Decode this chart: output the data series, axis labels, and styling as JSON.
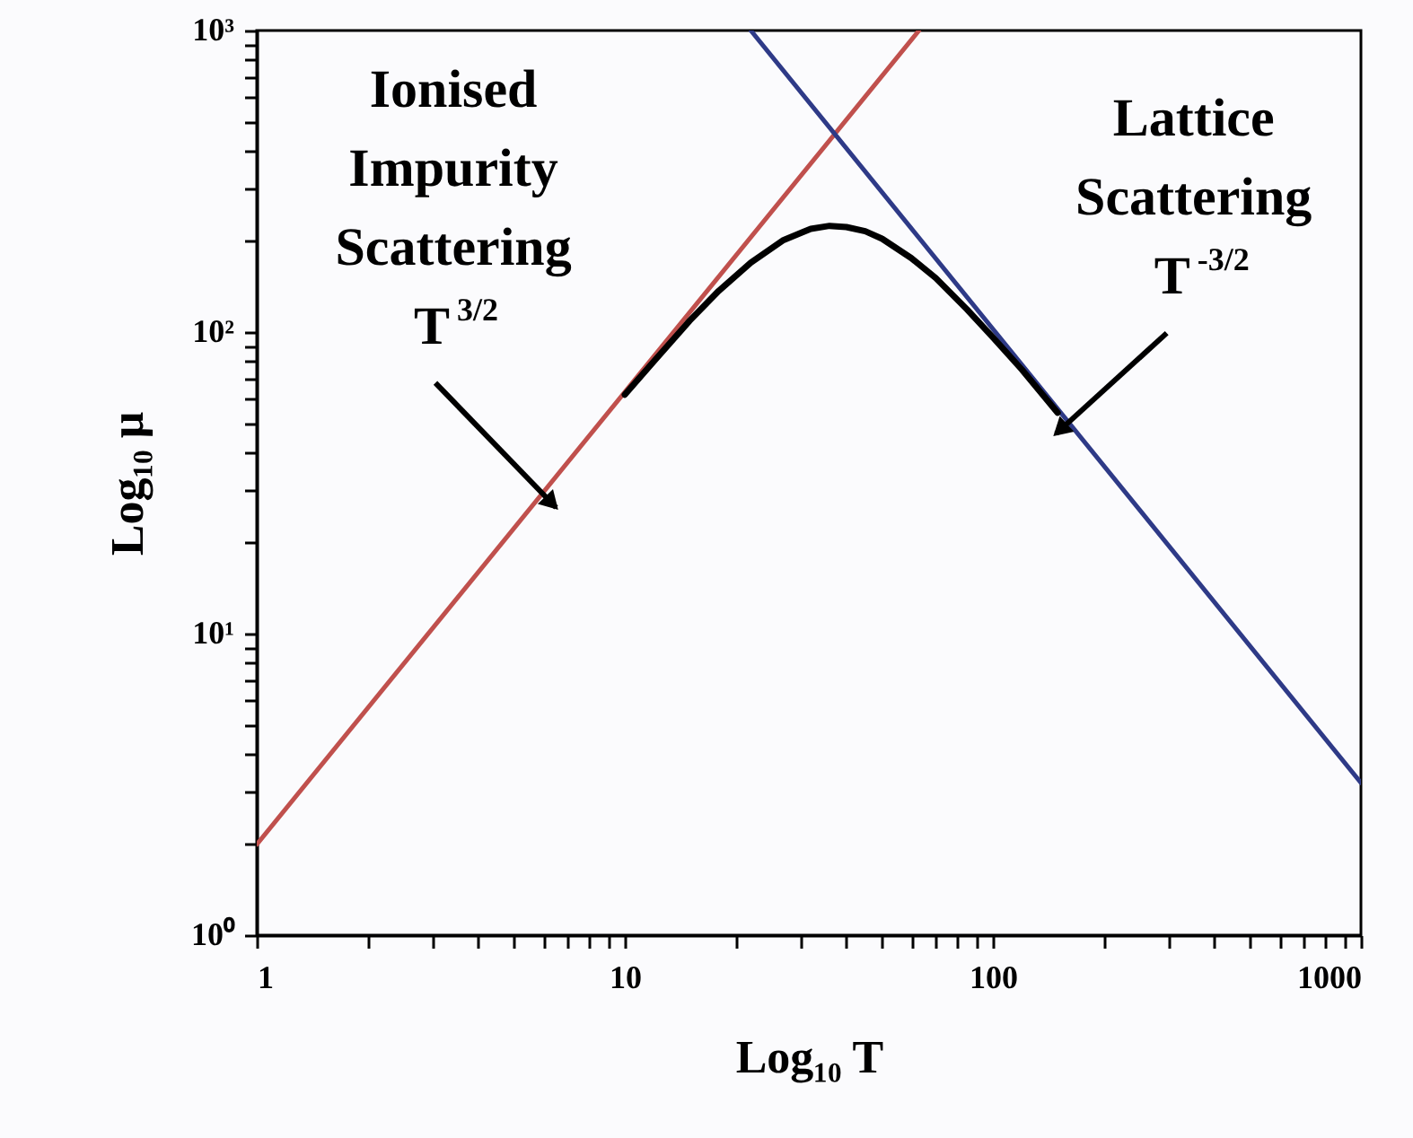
{
  "chart_data": {
    "type": "line",
    "xlabel": "Log₁₀ T",
    "ylabel": "Log₁₀ μ",
    "log": "xy",
    "grid": false,
    "line_style": "solid",
    "marker": "none",
    "xlim": [
      1,
      1000
    ],
    "ylim": [
      1,
      1000
    ],
    "xticks": [
      1,
      {
        "value": 2,
        "label": null
      },
      {
        "value": 3,
        "label": null
      },
      {
        "value": 4,
        "label": null
      },
      {
        "value": 5,
        "label": null
      },
      {
        "value": 6,
        "label": null
      },
      {
        "value": 7,
        "label": null
      },
      {
        "value": 8,
        "label": null
      },
      {
        "value": 9,
        "label": null
      },
      10,
      {
        "value": 20,
        "label": null
      },
      {
        "value": 30,
        "label": null
      },
      {
        "value": 40,
        "label": null
      },
      {
        "value": 50,
        "label": null
      },
      {
        "value": 60,
        "label": null
      },
      {
        "value": 70,
        "label": null
      },
      {
        "value": 80,
        "label": null
      },
      {
        "value": 90,
        "label": null
      },
      100,
      {
        "value": 200,
        "label": null
      },
      {
        "value": 300,
        "label": null
      },
      {
        "value": 400,
        "label": null
      },
      {
        "value": 500,
        "label": null
      },
      {
        "value": 600,
        "label": null
      },
      {
        "value": 700,
        "label": null
      },
      {
        "value": 800,
        "label": null
      },
      {
        "value": 900,
        "label": null
      },
      1000
    ],
    "yticks": [
      {
        "value": 1,
        "label": "10⁰"
      },
      {
        "value": 2,
        "label": null
      },
      {
        "value": 3,
        "label": null
      },
      {
        "value": 4,
        "label": null
      },
      {
        "value": 5,
        "label": null
      },
      {
        "value": 6,
        "label": null
      },
      {
        "value": 7,
        "label": null
      },
      {
        "value": 8,
        "label": null
      },
      {
        "value": 9,
        "label": null
      },
      {
        "value": 10,
        "label": "10¹"
      },
      {
        "value": 20,
        "label": null
      },
      {
        "value": 30,
        "label": null
      },
      {
        "value": 40,
        "label": null
      },
      {
        "value": 50,
        "label": null
      },
      {
        "value": 60,
        "label": null
      },
      {
        "value": 70,
        "label": null
      },
      {
        "value": 80,
        "label": null
      },
      {
        "value": 90,
        "label": null
      },
      {
        "value": 100,
        "label": "10²"
      },
      {
        "value": 200,
        "label": null
      },
      {
        "value": 300,
        "label": null
      },
      {
        "value": 400,
        "label": null
      },
      {
        "value": 500,
        "label": null
      },
      {
        "value": 600,
        "label": null
      },
      {
        "value": 700,
        "label": null
      },
      {
        "value": 800,
        "label": null
      },
      {
        "value": 900,
        "label": null
      },
      {
        "value": 1000,
        "label": "10³"
      }
    ],
    "series": [
      {
        "color": "#c0504d",
        "x": [
          1,
          63
        ],
        "values": [
          2,
          1000
        ]
      },
      {
        "color": "#2e3a87",
        "x": [
          22,
          1000
        ],
        "values": [
          1000,
          3.2
        ]
      },
      {
        "color": "#000000",
        "x": [
          10,
          12,
          15,
          18,
          22,
          27,
          32,
          36,
          40,
          45,
          50,
          60,
          70,
          85,
          100,
          120,
          150
        ],
        "values": [
          62,
          80,
          109,
          137,
          170,
          202,
          220,
          225,
          223,
          216,
          204,
          176,
          151,
          119,
          96,
          75,
          54
        ]
      }
    ],
    "annotations": [
      {
        "text": "Ionised\nImpurity\nScattering\nT$^{3/2}$",
        "x": 6,
        "y": 29
      },
      {
        "text": "Lattice\nScattering\nT$^{-3/2}$",
        "x": 160,
        "y": 50
      }
    ]
  }
}
